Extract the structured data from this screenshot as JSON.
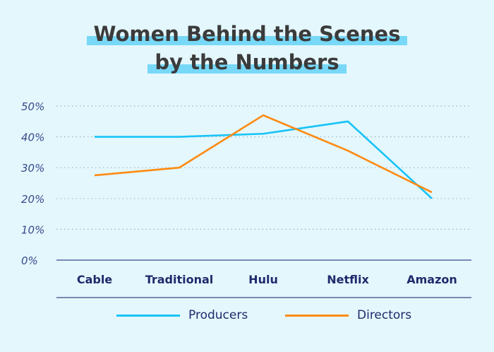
{
  "title_lines": [
    "Women Behind the Scenes",
    "by the Numbers"
  ],
  "chart_data": {
    "type": "line",
    "title": "Women Behind the Scenes by the Numbers",
    "categories": [
      "Cable",
      "Traditional",
      "Hulu",
      "Netflix",
      "Amazon"
    ],
    "series": [
      {
        "name": "Producers",
        "color": "#17c3f7",
        "values": [
          40,
          40,
          41,
          45,
          20
        ]
      },
      {
        "name": "Directors",
        "color": "#ff8a12",
        "values": [
          27.5,
          30,
          47,
          35.5,
          22
        ]
      }
    ],
    "ylim": [
      0,
      50
    ],
    "yticks": [
      "0%",
      "10%",
      "20%",
      "30%",
      "40%",
      "50%"
    ],
    "grid": true,
    "legend": "bottom"
  }
}
